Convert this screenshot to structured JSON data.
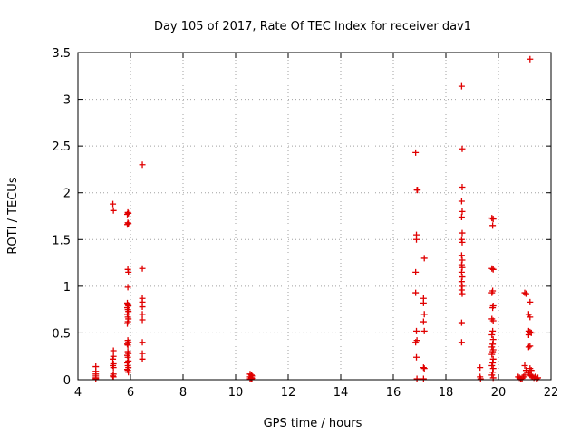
{
  "chart_data": {
    "type": "scatter",
    "title": "Day 105 of 2017, Rate Of TEC Index for receiver dav1",
    "xlabel": "GPS time / hours",
    "ylabel": "ROTI / TECUs",
    "xlim": [
      4,
      22
    ],
    "ylim": [
      0,
      3.5
    ],
    "xticks": [
      4,
      6,
      8,
      10,
      12,
      14,
      16,
      18,
      20,
      22
    ],
    "xtick_labels": [
      "4",
      "6",
      "8",
      "10",
      "12",
      "14",
      "16",
      "18",
      "20",
      "22"
    ],
    "yticks": [
      0,
      0.5,
      1,
      1.5,
      2,
      2.5,
      3,
      3.5
    ],
    "ytick_labels": [
      "0",
      "0.5",
      "1",
      "1.5",
      "2",
      "2.5",
      "3",
      "3.5"
    ],
    "grid": true,
    "marker": "plus",
    "marker_color": "#e00000",
    "points": [
      [
        4.68,
        0.14
      ],
      [
        4.68,
        0.09
      ],
      [
        4.68,
        0.06
      ],
      [
        4.68,
        0.04
      ],
      [
        4.68,
        0.02
      ],
      [
        4.68,
        0.01
      ],
      [
        5.33,
        1.88
      ],
      [
        5.35,
        1.81
      ],
      [
        5.35,
        0.31
      ],
      [
        5.35,
        0.25
      ],
      [
        5.33,
        0.22
      ],
      [
        5.35,
        0.17
      ],
      [
        5.33,
        0.15
      ],
      [
        5.35,
        0.13
      ],
      [
        5.35,
        0.06
      ],
      [
        5.33,
        0.04
      ],
      [
        5.35,
        0.03
      ],
      [
        5.9,
        1.79
      ],
      [
        5.92,
        1.78
      ],
      [
        5.88,
        1.77
      ],
      [
        5.9,
        1.68
      ],
      [
        5.92,
        1.67
      ],
      [
        5.88,
        1.66
      ],
      [
        5.9,
        1.18
      ],
      [
        5.92,
        1.15
      ],
      [
        5.9,
        0.99
      ],
      [
        5.88,
        0.82
      ],
      [
        5.9,
        0.8
      ],
      [
        5.92,
        0.79
      ],
      [
        5.88,
        0.77
      ],
      [
        5.9,
        0.75
      ],
      [
        5.92,
        0.73
      ],
      [
        5.88,
        0.7
      ],
      [
        5.9,
        0.67
      ],
      [
        5.92,
        0.65
      ],
      [
        5.9,
        0.62
      ],
      [
        5.88,
        0.6
      ],
      [
        5.9,
        0.42
      ],
      [
        5.92,
        0.4
      ],
      [
        5.88,
        0.38
      ],
      [
        5.9,
        0.37
      ],
      [
        5.9,
        0.3
      ],
      [
        5.92,
        0.28
      ],
      [
        5.88,
        0.26
      ],
      [
        5.9,
        0.24
      ],
      [
        5.92,
        0.2
      ],
      [
        5.88,
        0.18
      ],
      [
        5.9,
        0.15
      ],
      [
        5.92,
        0.13
      ],
      [
        5.88,
        0.11
      ],
      [
        5.9,
        0.1
      ],
      [
        5.92,
        0.08
      ],
      [
        6.45,
        2.3
      ],
      [
        6.45,
        1.19
      ],
      [
        6.45,
        0.87
      ],
      [
        6.45,
        0.83
      ],
      [
        6.45,
        0.78
      ],
      [
        6.45,
        0.7
      ],
      [
        6.45,
        0.64
      ],
      [
        6.45,
        0.4
      ],
      [
        6.45,
        0.28
      ],
      [
        6.45,
        0.22
      ],
      [
        10.55,
        0.06
      ],
      [
        10.6,
        0.05
      ],
      [
        10.62,
        0.04
      ],
      [
        10.55,
        0.03
      ],
      [
        10.6,
        0.02
      ],
      [
        10.62,
        0.015
      ],
      [
        10.55,
        0.01
      ],
      [
        10.6,
        0.005
      ],
      [
        16.85,
        2.43
      ],
      [
        16.9,
        2.03
      ],
      [
        16.92,
        2.03
      ],
      [
        16.88,
        1.55
      ],
      [
        16.88,
        1.5
      ],
      [
        16.85,
        1.15
      ],
      [
        16.85,
        0.93
      ],
      [
        16.88,
        0.52
      ],
      [
        16.9,
        0.42
      ],
      [
        16.85,
        0.4
      ],
      [
        16.88,
        0.24
      ],
      [
        16.9,
        0.01
      ],
      [
        17.18,
        1.3
      ],
      [
        17.15,
        0.87
      ],
      [
        17.15,
        0.82
      ],
      [
        17.18,
        0.7
      ],
      [
        17.15,
        0.62
      ],
      [
        17.18,
        0.52
      ],
      [
        17.15,
        0.13
      ],
      [
        17.18,
        0.12
      ],
      [
        17.15,
        0.01
      ],
      [
        18.6,
        3.14
      ],
      [
        18.62,
        2.47
      ],
      [
        18.62,
        2.06
      ],
      [
        18.6,
        1.91
      ],
      [
        18.62,
        1.8
      ],
      [
        18.6,
        1.74
      ],
      [
        18.62,
        1.57
      ],
      [
        18.6,
        1.5
      ],
      [
        18.62,
        1.47
      ],
      [
        18.6,
        1.33
      ],
      [
        18.62,
        1.28
      ],
      [
        18.6,
        1.23
      ],
      [
        18.62,
        1.2
      ],
      [
        18.6,
        1.15
      ],
      [
        18.62,
        1.1
      ],
      [
        18.6,
        1.05
      ],
      [
        18.62,
        1.0
      ],
      [
        18.6,
        0.96
      ],
      [
        18.62,
        0.92
      ],
      [
        18.6,
        0.61
      ],
      [
        18.6,
        0.4
      ],
      [
        19.3,
        0.13
      ],
      [
        19.3,
        0.03
      ],
      [
        19.32,
        0.01
      ],
      [
        19.75,
        1.73
      ],
      [
        19.8,
        1.72
      ],
      [
        19.78,
        1.65
      ],
      [
        19.75,
        1.19
      ],
      [
        19.8,
        1.18
      ],
      [
        19.78,
        0.95
      ],
      [
        19.75,
        0.93
      ],
      [
        19.8,
        0.79
      ],
      [
        19.78,
        0.77
      ],
      [
        19.75,
        0.65
      ],
      [
        19.8,
        0.63
      ],
      [
        19.78,
        0.52
      ],
      [
        19.75,
        0.48
      ],
      [
        19.8,
        0.43
      ],
      [
        19.78,
        0.38
      ],
      [
        19.75,
        0.35
      ],
      [
        19.8,
        0.32
      ],
      [
        19.78,
        0.3
      ],
      [
        19.75,
        0.27
      ],
      [
        19.8,
        0.22
      ],
      [
        19.78,
        0.18
      ],
      [
        19.75,
        0.15
      ],
      [
        19.8,
        0.12
      ],
      [
        19.78,
        0.08
      ],
      [
        19.75,
        0.05
      ],
      [
        19.8,
        0.02
      ],
      [
        20.75,
        0.03
      ],
      [
        20.8,
        0.02
      ],
      [
        20.85,
        0.01
      ],
      [
        20.9,
        0.015
      ],
      [
        20.95,
        0.03
      ],
      [
        21.0,
        0.93
      ],
      [
        21.05,
        0.92
      ],
      [
        21.0,
        0.15
      ],
      [
        21.05,
        0.1
      ],
      [
        21.0,
        0.05
      ],
      [
        21.2,
        3.43
      ],
      [
        21.2,
        0.83
      ],
      [
        21.15,
        0.7
      ],
      [
        21.2,
        0.67
      ],
      [
        21.15,
        0.52
      ],
      [
        21.2,
        0.51
      ],
      [
        21.25,
        0.5
      ],
      [
        21.15,
        0.48
      ],
      [
        21.2,
        0.36
      ],
      [
        21.15,
        0.35
      ],
      [
        21.2,
        0.12
      ],
      [
        21.25,
        0.1
      ],
      [
        21.15,
        0.07
      ],
      [
        21.2,
        0.05
      ],
      [
        21.25,
        0.04
      ],
      [
        21.3,
        0.03
      ],
      [
        21.35,
        0.02
      ],
      [
        21.4,
        0.03
      ],
      [
        21.45,
        0.01
      ],
      [
        21.5,
        0.02
      ]
    ]
  }
}
